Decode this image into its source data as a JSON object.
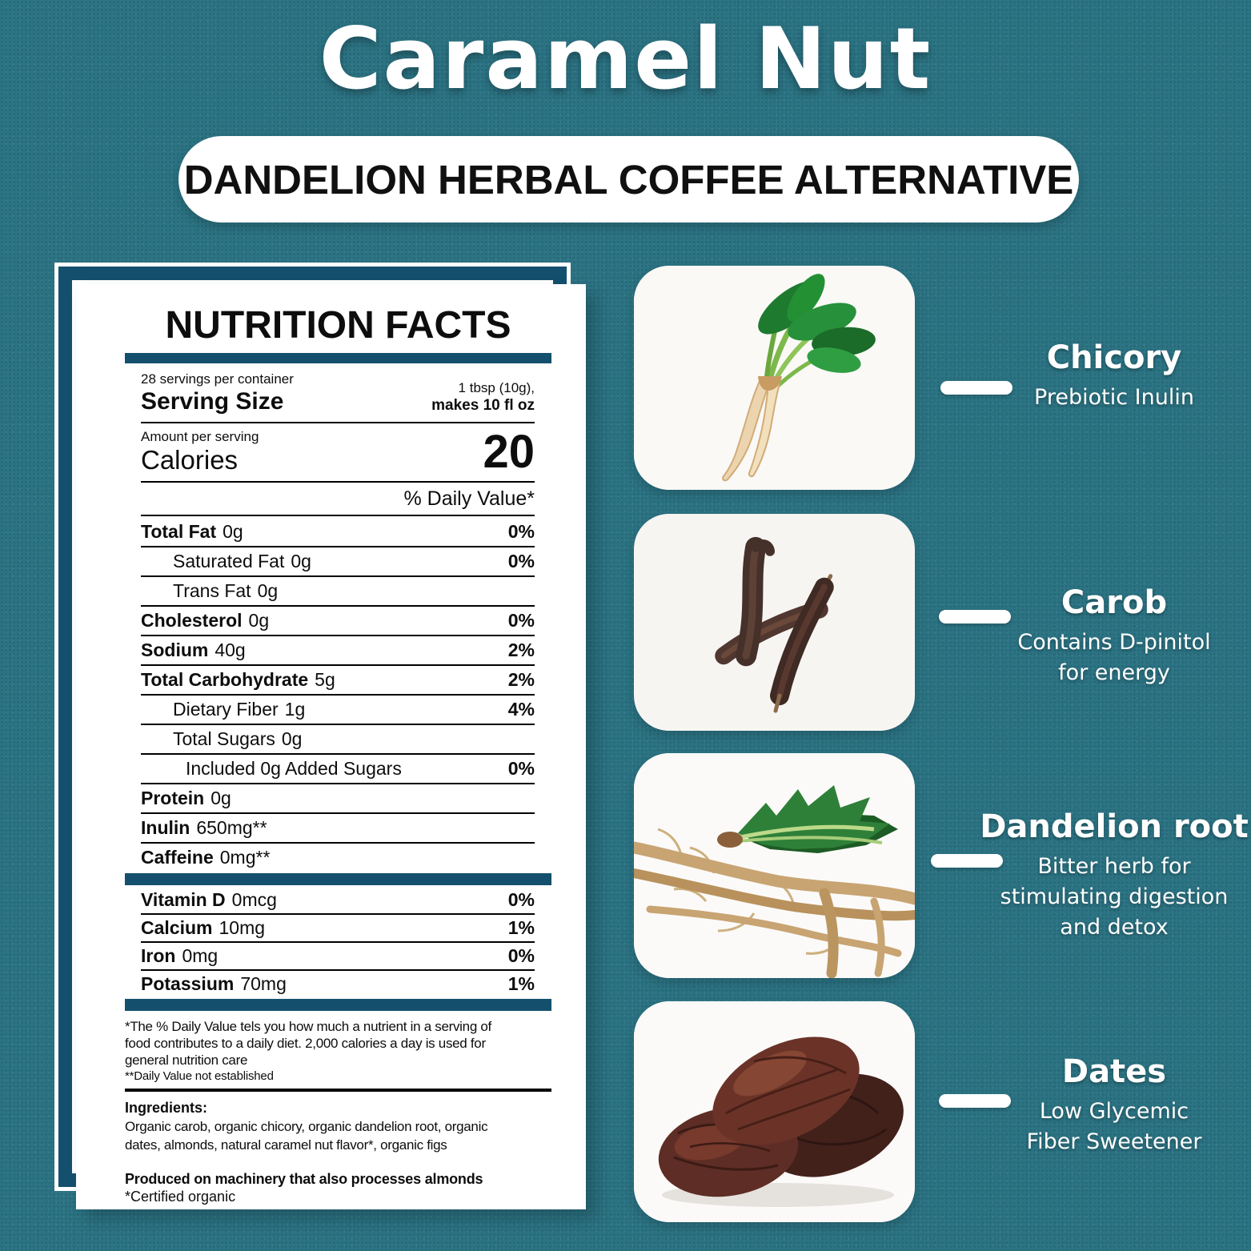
{
  "header": {
    "title": "Caramel Nut",
    "subtitle": "DANDELION HERBAL COFFEE ALTERNATIVE"
  },
  "nutrition_label": {
    "title": "NUTRITION FACTS",
    "servings_per_container": "28 servings per container",
    "serving_size_label": "Serving Size",
    "serving_size_value_line1": "1 tbsp (10g),",
    "serving_size_value_line2": "makes 10 fl oz",
    "amount_per_serving": "Amount per serving",
    "calories_label": "Calories",
    "calories_value": "20",
    "daily_value_header": "% Daily Value*",
    "rows": [
      {
        "label": "Total Fat",
        "value": "0g",
        "dv": "0%",
        "bold": true,
        "indent": 0
      },
      {
        "label": "Saturated Fat",
        "value": "0g",
        "dv": "0%",
        "bold": false,
        "indent": 1
      },
      {
        "label": "Trans Fat",
        "value": "0g",
        "dv": "",
        "bold": false,
        "indent": 1
      },
      {
        "label": "Cholesterol",
        "value": "0g",
        "dv": "0%",
        "bold": true,
        "indent": 0
      },
      {
        "label": "Sodium",
        "value": "40g",
        "dv": "2%",
        "bold": true,
        "indent": 0
      },
      {
        "label": "Total Carbohydrate",
        "value": "5g",
        "dv": "2%",
        "bold": true,
        "indent": 0
      },
      {
        "label": "Dietary Fiber",
        "value": "1g",
        "dv": "4%",
        "bold": false,
        "indent": 1
      },
      {
        "label": "Total Sugars",
        "value": "0g",
        "dv": "",
        "bold": false,
        "indent": 1
      },
      {
        "label": "Included 0g Added Sugars",
        "value": "",
        "dv": "0%",
        "bold": false,
        "indent": 2
      },
      {
        "label": "Protein",
        "value": "0g",
        "dv": "",
        "bold": true,
        "indent": 0
      },
      {
        "label": "Inulin",
        "value": "650mg**",
        "dv": "",
        "bold": true,
        "indent": 0
      },
      {
        "label": "Caffeine",
        "value": "0mg**",
        "dv": "",
        "bold": true,
        "indent": 0
      }
    ],
    "micronutrient_rows": [
      {
        "label": "Vitamin D",
        "value": "0mcg",
        "dv": "0%",
        "bold": true,
        "indent": 0
      },
      {
        "label": "Calcium",
        "value": "10mg",
        "dv": "1%",
        "bold": true,
        "indent": 0
      },
      {
        "label": "Iron",
        "value": "0mg",
        "dv": "0%",
        "bold": true,
        "indent": 0
      },
      {
        "label": "Potassium",
        "value": "70mg",
        "dv": "1%",
        "bold": true,
        "indent": 0
      }
    ],
    "footnote_lines": [
      "*The %  Daily Value tels you how much a nutrient in a serving of",
      "food contributes to a daily diet. 2,000 calories a day is used for",
      "general nutrition care"
    ],
    "footnote_small": "**Daily Value not established",
    "ingredients_heading": "Ingredients:",
    "ingredients_lines": [
      "Organic carob, organic chicory, organic dandelion root, organic",
      "dates, almonds, natural caramel nut flavor*, organic figs"
    ],
    "allergen_note": "Produced on machinery that also processes almonds",
    "organic_note": "*Certified organic"
  },
  "ingredients_callouts": [
    {
      "name": "Chicory",
      "description": "Prebiotic Inulin",
      "image": "chicory-photo"
    },
    {
      "name": "Carob",
      "description": "Contains D-pinitol for energy",
      "image": "carob-photo"
    },
    {
      "name": "Dandelion root",
      "description": "Bitter herb for stimulating digestion and detox",
      "image": "dandelion-root-photo"
    },
    {
      "name": "Dates",
      "description": "Low Glycemic Fiber Sweetener",
      "image": "dates-photo"
    }
  ],
  "colors": {
    "background_teal": "#2c7484",
    "navy": "#14506e",
    "card_white": "#ffffff"
  }
}
